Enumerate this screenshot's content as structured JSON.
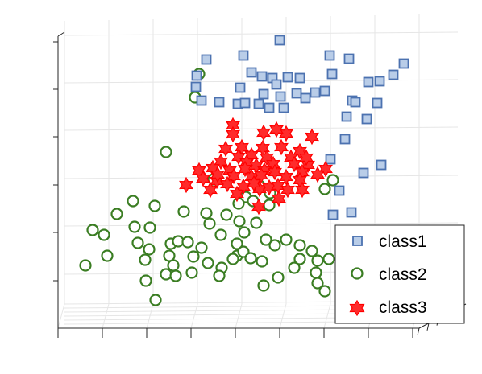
{
  "chart_data": {
    "type": "scatter",
    "dimensions": 3,
    "grid": true,
    "legend_position": "bottom-right",
    "colors": {
      "class1_edge": "#4c72b0",
      "class1_fill": "#b9cde8",
      "class2_edge": "#3a7d22",
      "class3_edge": "#ff0000"
    },
    "series": [
      {
        "name": "class1",
        "marker": "square",
        "points": [
          [
            347,
            50
          ],
          [
            256,
            74
          ],
          [
            302,
            69
          ],
          [
            409,
            69
          ],
          [
            433,
            73
          ],
          [
            501,
            79
          ],
          [
            312,
            90
          ],
          [
            325,
            95
          ],
          [
            338,
            97
          ],
          [
            357,
            96
          ],
          [
            372,
            97
          ],
          [
            343,
            105
          ],
          [
            412,
            92
          ],
          [
            488,
            93
          ],
          [
            457,
            102
          ],
          [
            471,
            101
          ],
          [
            244,
            94
          ],
          [
            243,
            108
          ],
          [
            298,
            109
          ],
          [
            327,
            117
          ],
          [
            321,
            129
          ],
          [
            348,
            120
          ],
          [
            368,
            116
          ],
          [
            391,
            115
          ],
          [
            403,
            113
          ],
          [
            250,
            125
          ],
          [
            272,
            127
          ],
          [
            295,
            129
          ],
          [
            304,
            128
          ],
          [
            334,
            134
          ],
          [
            352,
            134
          ],
          [
            379,
            122
          ],
          [
            437,
            125
          ],
          [
            468,
            128
          ],
          [
            441,
            127
          ],
          [
            455,
            148
          ],
          [
            430,
            145
          ],
          [
            428,
            173
          ],
          [
            410,
            198
          ],
          [
            451,
            215
          ],
          [
            473,
            205
          ],
          [
            421,
            237
          ],
          [
            436,
            264
          ],
          [
            413,
            267
          ]
        ]
      },
      {
        "name": "class2",
        "marker": "circle",
        "points": [
          [
            247,
            92
          ],
          [
            242,
            121
          ],
          [
            206,
            189
          ],
          [
            265,
            223
          ],
          [
            322,
            231
          ],
          [
            413,
            224
          ],
          [
            403,
            235
          ],
          [
            335,
            240
          ],
          [
            305,
            245
          ],
          [
            314,
            250
          ],
          [
            334,
            255
          ],
          [
            296,
            253
          ],
          [
            165,
            250
          ],
          [
            192,
            256
          ],
          [
            145,
            266
          ],
          [
            167,
            282
          ],
          [
            186,
            283
          ],
          [
            228,
            263
          ],
          [
            256,
            265
          ],
          [
            260,
            278
          ],
          [
            281,
            267
          ],
          [
            297,
            275
          ],
          [
            115,
            286
          ],
          [
            129,
            292
          ],
          [
            274,
            292
          ],
          [
            318,
            277
          ],
          [
            303,
            289
          ],
          [
            294,
            303
          ],
          [
            330,
            298
          ],
          [
            212,
            303
          ],
          [
            221,
            300
          ],
          [
            171,
            302
          ],
          [
            185,
            310
          ],
          [
            106,
            330
          ],
          [
            133,
            318
          ],
          [
            180,
            323
          ],
          [
            210,
            318
          ],
          [
            215,
            330
          ],
          [
            240,
            319
          ],
          [
            258,
            327
          ],
          [
            275,
            333
          ],
          [
            294,
            318
          ],
          [
            302,
            313
          ],
          [
            311,
            321
          ],
          [
            325,
            325
          ],
          [
            355,
            298
          ],
          [
            372,
            305
          ],
          [
            387,
            312
          ],
          [
            394,
            324
          ],
          [
            408,
            322
          ],
          [
            372,
            322
          ],
          [
            365,
            333
          ],
          [
            238,
            339
          ],
          [
            206,
            341
          ],
          [
            218,
            343
          ],
          [
            272,
            343
          ],
          [
            345,
            345
          ],
          [
            392,
            339
          ],
          [
            181,
            349
          ],
          [
            327,
            355
          ],
          [
            394,
            352
          ],
          [
            403,
            362
          ],
          [
            193,
            373
          ],
          [
            233,
            301
          ],
          [
            250,
            308
          ],
          [
            289,
            322
          ],
          [
            341,
            305
          ]
        ]
      },
      {
        "name": "class3",
        "marker": "hexagram",
        "points": [
          [
            289,
            156
          ],
          [
            289,
            167
          ],
          [
            327,
            165
          ],
          [
            355,
            166
          ],
          [
            387,
            170
          ],
          [
            343,
            161
          ],
          [
            280,
            185
          ],
          [
            300,
            183
          ],
          [
            326,
            184
          ],
          [
            349,
            183
          ],
          [
            372,
            188
          ],
          [
            312,
            193
          ],
          [
            296,
            195
          ],
          [
            331,
            196
          ],
          [
            361,
            196
          ],
          [
            274,
            201
          ],
          [
            306,
            202
          ],
          [
            318,
            206
          ],
          [
            339,
            204
          ],
          [
            365,
            204
          ],
          [
            382,
            205
          ],
          [
            404,
            210
          ],
          [
            247,
            212
          ],
          [
            264,
            209
          ],
          [
            285,
            212
          ],
          [
            304,
            210
          ],
          [
            328,
            212
          ],
          [
            341,
            214
          ],
          [
            375,
            214
          ],
          [
            394,
            217
          ],
          [
            231,
            230
          ],
          [
            252,
            222
          ],
          [
            269,
            225
          ],
          [
            290,
            219
          ],
          [
            312,
            220
          ],
          [
            324,
            218
          ],
          [
            355,
            220
          ],
          [
            372,
            224
          ],
          [
            261,
            236
          ],
          [
            282,
            229
          ],
          [
            302,
            232
          ],
          [
            322,
            235
          ],
          [
            334,
            233
          ],
          [
            345,
            231
          ],
          [
            357,
            236
          ],
          [
            375,
            236
          ],
          [
            294,
            241
          ],
          [
            346,
            247
          ],
          [
            321,
            257
          ],
          [
            315,
            228
          ],
          [
            270,
            217
          ],
          [
            380,
            196
          ]
        ]
      }
    ]
  },
  "legend": {
    "class1": "class1",
    "class2": "class2",
    "class3": "class3"
  }
}
